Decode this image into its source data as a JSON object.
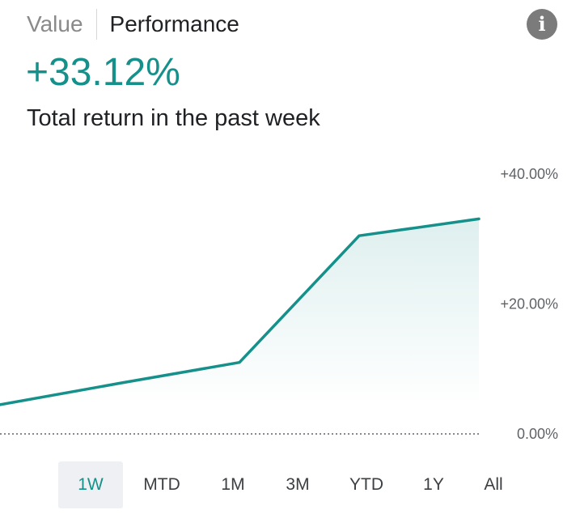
{
  "tabs": [
    {
      "label": "Value",
      "active": false
    },
    {
      "label": "Performance",
      "active": true
    }
  ],
  "info_icon": "info-icon",
  "performance": {
    "value": "+33.12%",
    "caption": "Total return in the past week"
  },
  "colors": {
    "accent": "#15908a",
    "fill": "#e3f1f0",
    "selected_bg": "#eef0f3"
  },
  "chart_data": {
    "type": "area",
    "x": [
      0,
      1,
      2,
      3,
      4
    ],
    "values": [
      4.5,
      7.8,
      11.0,
      30.5,
      33.1
    ],
    "ylim": [
      0,
      40
    ],
    "yticks": [
      "0.00%",
      "+20.00%",
      "+40.00%"
    ],
    "ytick_values": [
      0,
      20,
      40
    ],
    "baseline": 0,
    "grid": false
  },
  "ranges": [
    {
      "label": "1W",
      "selected": true
    },
    {
      "label": "MTD",
      "selected": false
    },
    {
      "label": "1M",
      "selected": false
    },
    {
      "label": "3M",
      "selected": false
    },
    {
      "label": "YTD",
      "selected": false
    },
    {
      "label": "1Y",
      "selected": false
    },
    {
      "label": "All",
      "selected": false
    }
  ]
}
